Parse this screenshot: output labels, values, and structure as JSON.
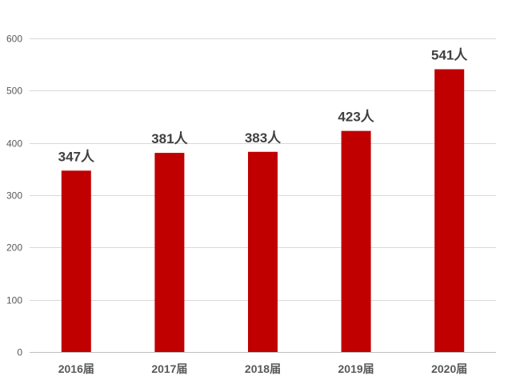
{
  "chart_data": {
    "type": "bar",
    "categories": [
      "2016届",
      "2017届",
      "2018届",
      "2019届",
      "2020届"
    ],
    "values": [
      347,
      381,
      383,
      423,
      541
    ],
    "data_labels": [
      "347人",
      "381人",
      "383人",
      "423人",
      "541人"
    ],
    "title": "",
    "xlabel": "",
    "ylabel": "",
    "ylim": [
      0,
      600
    ],
    "yticks": [
      0,
      100,
      200,
      300,
      400,
      500,
      600
    ],
    "ytick_labels": [
      "0",
      "100",
      "200",
      "300",
      "400",
      "500",
      "600"
    ],
    "grid": true,
    "legend": "none",
    "bar_color": "#c00000"
  }
}
